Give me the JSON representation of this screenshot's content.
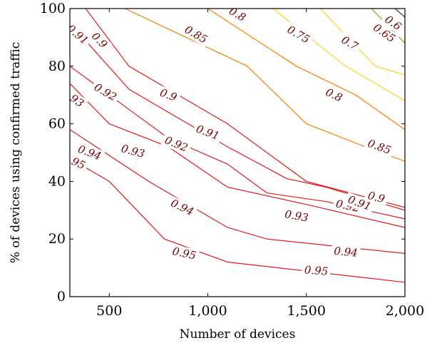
{
  "chart_data": {
    "type": "contour",
    "xlabel": "Number of devices",
    "ylabel": "% of devices using confirmed traffic",
    "xlim": [
      300,
      2000
    ],
    "ylim": [
      0,
      100
    ],
    "x_ticks": [
      500,
      1000,
      1500,
      2000
    ],
    "x_tick_labels": [
      "500",
      "1,000",
      "1,500",
      "2,000"
    ],
    "y_ticks": [
      0,
      20,
      40,
      60,
      80,
      100
    ],
    "y_tick_labels": [
      "0",
      "20",
      "40",
      "60",
      "80",
      "100"
    ],
    "grid": false,
    "levels": [
      {
        "level": "0.95",
        "color": "#e41a1c",
        "points": [
          [
            300,
            48
          ],
          [
            500,
            40
          ],
          [
            780,
            20
          ],
          [
            1100,
            12
          ],
          [
            2000,
            5
          ]
        ],
        "labels": [
          {
            "text": "0.95",
            "x": 320,
            "y": 47,
            "angle": 25
          },
          {
            "text": "0.95",
            "x": 880,
            "y": 15,
            "angle": 12
          },
          {
            "text": "0.95",
            "x": 1550,
            "y": 9,
            "angle": 4
          }
        ]
      },
      {
        "level": "0.94",
        "color": "#e41a1c",
        "points": [
          [
            300,
            58
          ],
          [
            700,
            40
          ],
          [
            1100,
            24
          ],
          [
            1300,
            20
          ],
          [
            2000,
            15
          ]
        ],
        "labels": [
          {
            "text": "0.94",
            "x": 400,
            "y": 50,
            "angle": 20
          },
          {
            "text": "0.94",
            "x": 870,
            "y": 31,
            "angle": 25
          },
          {
            "text": "0.94",
            "x": 1700,
            "y": 15.5,
            "angle": 5
          }
        ]
      },
      {
        "level": "0.93",
        "color": "#e41a1c",
        "points": [
          [
            300,
            74
          ],
          [
            500,
            60
          ],
          [
            800,
            52
          ],
          [
            1100,
            38
          ],
          [
            1500,
            32
          ],
          [
            2000,
            24
          ]
        ],
        "labels": [
          {
            "text": "0.93",
            "x": 315,
            "y": 69,
            "angle": 35
          },
          {
            "text": "0.93",
            "x": 620,
            "y": 50.5,
            "angle": 15
          },
          {
            "text": "0.93",
            "x": 1450,
            "y": 28,
            "angle": 10
          }
        ]
      },
      {
        "level": "0.92",
        "color": "#e41a1c",
        "points": [
          [
            300,
            80
          ],
          [
            500,
            70
          ],
          [
            800,
            55
          ],
          [
            1100,
            46
          ],
          [
            1300,
            36
          ],
          [
            1600,
            33
          ],
          [
            2000,
            27
          ]
        ],
        "labels": [
          {
            "text": "0.92",
            "x": 480,
            "y": 71,
            "angle": 30
          },
          {
            "text": "0.92",
            "x": 840,
            "y": 53,
            "angle": 22
          },
          {
            "text": "0.92",
            "x": 1710,
            "y": 31.5,
            "angle": 12
          }
        ]
      },
      {
        "level": "0.91",
        "color": "#e41a1c",
        "points": [
          [
            300,
            95
          ],
          [
            600,
            72
          ],
          [
            1100,
            52
          ],
          [
            1400,
            41
          ],
          [
            1600,
            38
          ],
          [
            2000,
            30
          ]
        ],
        "labels": [
          {
            "text": "0.91",
            "x": 340,
            "y": 91,
            "angle": 40
          },
          {
            "text": "0.91",
            "x": 1000,
            "y": 57,
            "angle": 20
          },
          {
            "text": "0.91",
            "x": 1770,
            "y": 32.5,
            "angle": 20
          }
        ]
      },
      {
        "level": "0.9",
        "color": "#e41a1c",
        "points": [
          [
            380,
            100
          ],
          [
            600,
            80
          ],
          [
            1100,
            60
          ],
          [
            1500,
            40
          ],
          [
            2000,
            31
          ]
        ],
        "labels": [
          {
            "text": "0.9",
            "x": 450,
            "y": 89,
            "angle": 45
          },
          {
            "text": "0.9",
            "x": 800,
            "y": 70,
            "angle": 20
          },
          {
            "text": "0.9",
            "x": 1855,
            "y": 34.5,
            "angle": 15
          }
        ]
      },
      {
        "level": "0.85",
        "color": "#ff7f00",
        "points": [
          [
            580,
            100
          ],
          [
            1200,
            80
          ],
          [
            1500,
            60
          ],
          [
            1800,
            52
          ],
          [
            2000,
            47
          ]
        ],
        "labels": [
          {
            "text": "0.85",
            "x": 940,
            "y": 91,
            "angle": 30
          },
          {
            "text": "0.85",
            "x": 1870,
            "y": 52,
            "angle": 20
          }
        ]
      },
      {
        "level": "0.8",
        "color": "#ff7f00",
        "points": [
          [
            1000,
            100
          ],
          [
            1450,
            80
          ],
          [
            1750,
            70
          ],
          [
            2000,
            58
          ]
        ],
        "labels": [
          {
            "text": "0.8",
            "x": 1150,
            "y": 98,
            "angle": 30
          },
          {
            "text": "0.8",
            "x": 1640,
            "y": 70,
            "angle": 25
          }
        ]
      },
      {
        "level": "0.75",
        "color": "#ffd21f",
        "points": [
          [
            1330,
            100
          ],
          [
            1700,
            80
          ],
          [
            2000,
            68
          ]
        ],
        "labels": [
          {
            "text": "0.75",
            "x": 1460,
            "y": 91,
            "angle": 30
          }
        ]
      },
      {
        "level": "0.7",
        "color": "#ffd21f",
        "points": [
          [
            1570,
            100
          ],
          [
            1850,
            80
          ],
          [
            2000,
            77
          ]
        ],
        "labels": [
          {
            "text": "0.7",
            "x": 1720,
            "y": 88,
            "angle": 30
          }
        ]
      },
      {
        "level": "0.65",
        "color": "#8ca21d",
        "points": [
          [
            1830,
            100
          ],
          [
            2000,
            88
          ]
        ],
        "labels": [
          {
            "text": "0.65",
            "x": 1895,
            "y": 91.5,
            "angle": 35
          }
        ]
      },
      {
        "level": "0.6",
        "color": "#3b2d8c",
        "points": [
          [
            1950,
            100
          ],
          [
            2000,
            97
          ]
        ],
        "labels": [
          {
            "text": "0.6",
            "x": 1940,
            "y": 95,
            "angle": 35
          }
        ]
      }
    ]
  }
}
